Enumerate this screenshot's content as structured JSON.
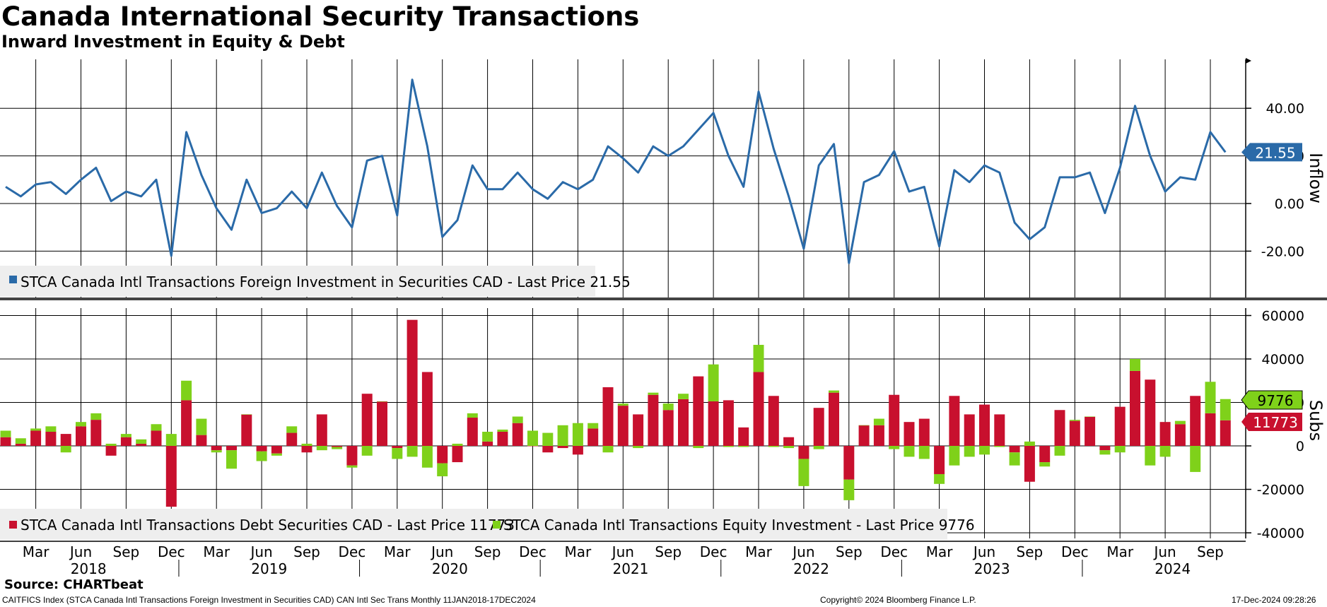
{
  "title": "Canada International Security Transactions",
  "subtitle": "Inward Investment in Equity & Debt",
  "source": "Source: CHARTbeat",
  "footer": {
    "index_desc": "CAITFICS Index (STCA Canada Intl Transactions Foreign Investment in Securities CAD) CAN Intl Sec Trans  Monthly 11JAN2018-17DEC2024",
    "copyright": "Copyright© 2024 Bloomberg Finance L.P.",
    "timestamp": "17-Dec-2024 09:28:26"
  },
  "colors": {
    "line": "#2a6aa8",
    "debt": "#c8102e",
    "equity": "#7fd11a",
    "grid": "#000000",
    "legend_bg": "#eeeeee"
  },
  "chart_data": [
    {
      "type": "line",
      "panel": "top",
      "axis_title": "Inflow",
      "yticks": [
        40,
        20,
        0,
        -20
      ],
      "ytick_labels": [
        "40.00",
        "20.00",
        "0.00",
        "-20.00"
      ],
      "ylim": [
        -32,
        62
      ],
      "last_value_label": "21.55",
      "legend": "STCA Canada Intl Transactions Foreign Investment in Securities CAD - Last Price 21.55",
      "legend_position": "bottom-left",
      "grid": true,
      "series": [
        {
          "name": "STCA Canada Intl Transactions Foreign Investment in Securities CAD",
          "x_start": "2018-01",
          "values": [
            7,
            3,
            8,
            9,
            4,
            10,
            15,
            1,
            5,
            3,
            10,
            -22,
            30,
            12,
            -2,
            -11,
            10,
            -4,
            -2,
            5,
            -2,
            13,
            -1,
            -10,
            18,
            20,
            -5,
            52,
            24,
            -14,
            -7,
            16,
            6,
            6,
            13,
            6,
            2,
            9,
            6,
            10,
            24,
            19,
            13,
            24,
            20,
            24,
            31,
            38,
            20,
            7,
            47,
            23,
            3,
            -19,
            16,
            25,
            -25,
            9,
            12,
            22,
            5,
            7,
            -18,
            14,
            9,
            16,
            13,
            -8,
            -15,
            -10,
            11,
            11,
            13,
            -4,
            15,
            41,
            20,
            5,
            11,
            10,
            30,
            21.55
          ]
        }
      ]
    },
    {
      "type": "bar",
      "stacked": true,
      "panel": "bottom",
      "axis_title": "Subs",
      "yticks": [
        60000,
        40000,
        20000,
        0,
        -20000,
        -40000
      ],
      "ytick_labels": [
        "60000",
        "40000",
        "20000",
        "0",
        "-20000",
        "-40000"
      ],
      "ylim": [
        -43000,
        63000
      ],
      "last_value_labels": [
        "9776",
        "11773"
      ],
      "legend_position": "bottom-left",
      "grid": true,
      "x_start": "2018-01",
      "series": [
        {
          "name": "STCA Canada Intl Transactions Debt Securities CAD",
          "legend": "STCA Canada Intl Transactions Debt Securities CAD - Last Price 11773",
          "values": [
            4000,
            1000,
            7000,
            6500,
            5500,
            9000,
            12000,
            -4500,
            4000,
            1000,
            7000,
            -28000,
            21000,
            5000,
            -2000,
            -2000,
            14500,
            -2500,
            -3500,
            6000,
            -3000,
            14500,
            -500,
            -9000,
            24000,
            20500,
            -1000,
            58000,
            34000,
            -8000,
            -7500,
            13000,
            2000,
            6500,
            10500,
            0,
            -3000,
            -1000,
            -4000,
            8000,
            27000,
            18500,
            14500,
            23500,
            16500,
            21500,
            32000,
            20500,
            21000,
            8500,
            34000,
            23000,
            4000,
            -6000,
            17500,
            24500,
            -15500,
            9500,
            9500,
            23500,
            11000,
            12500,
            -13000,
            23000,
            14500,
            19000,
            14500,
            -3000,
            -16500,
            -7500,
            16500,
            11500,
            13500,
            -2000,
            18000,
            34500,
            30500,
            11000,
            10000,
            23000,
            15000,
            11773
          ]
        },
        {
          "name": "STCA Canada Intl Transactions Equity Investment",
          "legend": "STCA Canada Intl Transactions Equity Investment - Last Price 9776",
          "values": [
            3000,
            2500,
            1000,
            2500,
            -3000,
            2000,
            3000,
            1000,
            1500,
            2000,
            3000,
            5500,
            9000,
            7500,
            -1000,
            -8500,
            0,
            -4500,
            -1000,
            3000,
            1000,
            -2000,
            -1000,
            -1000,
            -4500,
            0,
            -5000,
            -5000,
            -10000,
            -6000,
            1000,
            2000,
            4500,
            1000,
            3000,
            7000,
            6000,
            9500,
            10500,
            2500,
            -3000,
            1000,
            -1000,
            1000,
            3000,
            2500,
            -1000,
            17000,
            -500,
            -500,
            12500,
            -500,
            -1000,
            -12500,
            -1500,
            1000,
            -9500,
            0,
            3000,
            -1500,
            -5000,
            -6000,
            -4500,
            -9000,
            -5000,
            -4000,
            -500,
            -6000,
            2000,
            -2000,
            -4500,
            500,
            0,
            -2000,
            -3000,
            5500,
            -9000,
            -5000,
            1500,
            -12000,
            14500,
            9776
          ]
        }
      ]
    }
  ],
  "x_axis": {
    "month_labels": [
      {
        "label": "Mar",
        "x": "2018-03"
      },
      {
        "label": "Jun",
        "x": "2018-06"
      },
      {
        "label": "Sep",
        "x": "2018-09"
      },
      {
        "label": "Dec",
        "x": "2018-12"
      },
      {
        "label": "Mar",
        "x": "2019-03"
      },
      {
        "label": "Jun",
        "x": "2019-06"
      },
      {
        "label": "Sep",
        "x": "2019-09"
      },
      {
        "label": "Dec",
        "x": "2019-12"
      },
      {
        "label": "Mar",
        "x": "2020-03"
      },
      {
        "label": "Jun",
        "x": "2020-06"
      },
      {
        "label": "Sep",
        "x": "2020-09"
      },
      {
        "label": "Dec",
        "x": "2020-12"
      },
      {
        "label": "Mar",
        "x": "2021-03"
      },
      {
        "label": "Jun",
        "x": "2021-06"
      },
      {
        "label": "Sep",
        "x": "2021-09"
      },
      {
        "label": "Dec",
        "x": "2021-12"
      },
      {
        "label": "Mar",
        "x": "2022-03"
      },
      {
        "label": "Jun",
        "x": "2022-06"
      },
      {
        "label": "Sep",
        "x": "2022-09"
      },
      {
        "label": "Dec",
        "x": "2022-12"
      },
      {
        "label": "Mar",
        "x": "2023-03"
      },
      {
        "label": "Jun",
        "x": "2023-06"
      },
      {
        "label": "Sep",
        "x": "2023-09"
      },
      {
        "label": "Dec",
        "x": "2023-12"
      },
      {
        "label": "Mar",
        "x": "2024-03"
      },
      {
        "label": "Jun",
        "x": "2024-06"
      },
      {
        "label": "Sep",
        "x": "2024-09"
      }
    ],
    "year_labels": [
      "2018",
      "2019",
      "2020",
      "2021",
      "2022",
      "2023",
      "2024"
    ]
  }
}
